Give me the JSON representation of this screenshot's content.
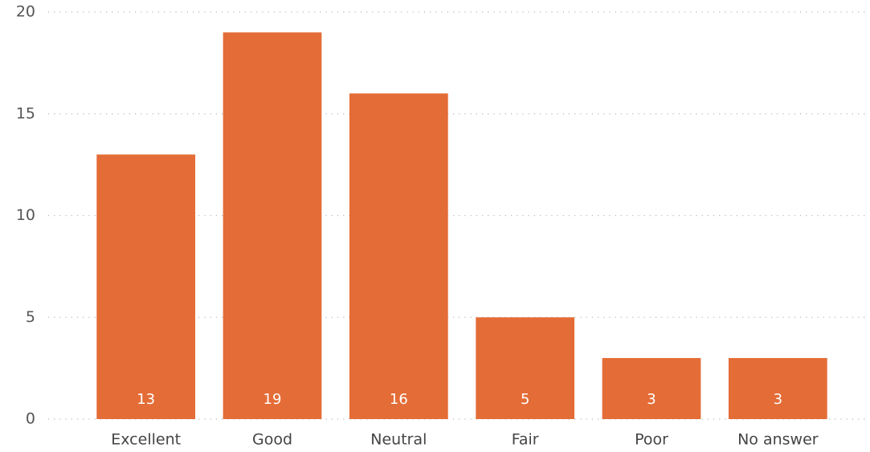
{
  "chart_data": {
    "type": "bar",
    "categories": [
      "Excellent",
      "Good",
      "Neutral",
      "Fair",
      "Poor",
      "No answer"
    ],
    "values": [
      13,
      19,
      16,
      5,
      3,
      3
    ],
    "color": "#e46c36",
    "ylim": [
      0,
      20
    ],
    "yticks": [
      0,
      5,
      10,
      15,
      20
    ],
    "grid": true
  }
}
